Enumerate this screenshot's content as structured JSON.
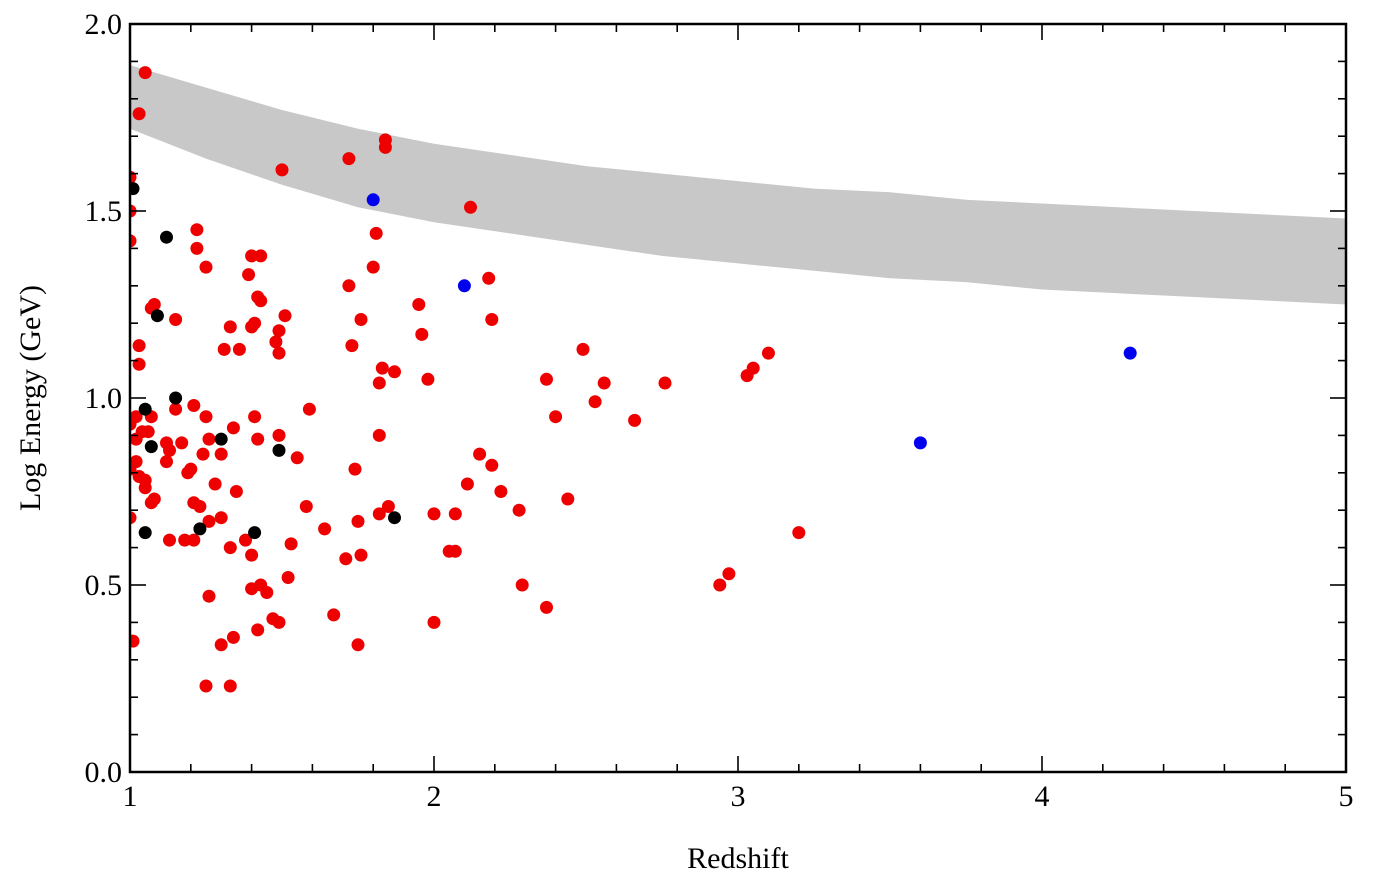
{
  "chart_data": {
    "type": "scatter",
    "title": "",
    "xlabel": "Redshift",
    "ylabel": "Log Energy (GeV)",
    "xlim": [
      1,
      5
    ],
    "ylim": [
      0,
      2
    ],
    "x_ticks": [
      "1",
      "2",
      "3",
      "4",
      "5"
    ],
    "y_ticks": [
      "0.0",
      "0.5",
      "1.0",
      "1.5",
      "2.0"
    ],
    "grid": false,
    "legend": "none",
    "band": {
      "color": "#c8c8c8",
      "x": [
        1.0,
        1.25,
        1.5,
        1.75,
        2.0,
        2.25,
        2.5,
        2.75,
        3.0,
        3.25,
        3.5,
        3.75,
        4.0,
        4.25,
        4.5,
        4.75,
        5.0
      ],
      "upper": [
        1.89,
        1.83,
        1.77,
        1.72,
        1.68,
        1.65,
        1.62,
        1.6,
        1.58,
        1.56,
        1.55,
        1.53,
        1.52,
        1.51,
        1.5,
        1.49,
        1.48
      ],
      "lower": [
        1.72,
        1.64,
        1.57,
        1.51,
        1.47,
        1.44,
        1.41,
        1.38,
        1.36,
        1.34,
        1.32,
        1.31,
        1.29,
        1.28,
        1.27,
        1.26,
        1.25
      ]
    },
    "series": [
      {
        "color": "#ee0000",
        "points": [
          [
            1.05,
            1.87
          ],
          [
            1.03,
            1.76
          ],
          [
            1.0,
            1.59
          ],
          [
            1.0,
            1.5
          ],
          [
            1.0,
            1.42
          ],
          [
            1.08,
            1.25
          ],
          [
            1.07,
            1.24
          ],
          [
            1.15,
            1.21
          ],
          [
            1.03,
            1.14
          ],
          [
            1.03,
            1.09
          ],
          [
            1.0,
            0.93
          ],
          [
            1.02,
            0.95
          ],
          [
            1.07,
            0.95
          ],
          [
            1.06,
            0.91
          ],
          [
            1.04,
            0.91
          ],
          [
            1.02,
            0.89
          ],
          [
            1.02,
            0.83
          ],
          [
            1.0,
            0.81
          ],
          [
            1.03,
            0.79
          ],
          [
            1.05,
            0.78
          ],
          [
            1.05,
            0.76
          ],
          [
            1.08,
            0.73
          ],
          [
            1.07,
            0.72
          ],
          [
            1.0,
            0.68
          ],
          [
            1.01,
            0.35
          ],
          [
            1.15,
            0.97
          ],
          [
            1.12,
            0.88
          ],
          [
            1.17,
            0.88
          ],
          [
            1.13,
            0.86
          ],
          [
            1.12,
            0.83
          ],
          [
            1.19,
            0.8
          ],
          [
            1.2,
            0.81
          ],
          [
            1.13,
            0.62
          ],
          [
            1.18,
            0.62
          ],
          [
            1.21,
            0.72
          ],
          [
            1.22,
            1.45
          ],
          [
            1.22,
            1.4
          ],
          [
            1.25,
            1.35
          ],
          [
            1.21,
            0.98
          ],
          [
            1.25,
            0.95
          ],
          [
            1.26,
            0.89
          ],
          [
            1.24,
            0.85
          ],
          [
            1.28,
            0.77
          ],
          [
            1.23,
            0.71
          ],
          [
            1.26,
            0.67
          ],
          [
            1.3,
            0.68
          ],
          [
            1.21,
            0.62
          ],
          [
            1.26,
            0.47
          ],
          [
            1.25,
            0.23
          ],
          [
            1.33,
            0.23
          ],
          [
            1.3,
            0.85
          ],
          [
            1.34,
            0.92
          ],
          [
            1.31,
            1.13
          ],
          [
            1.33,
            1.19
          ],
          [
            1.36,
            1.13
          ],
          [
            1.39,
            1.33
          ],
          [
            1.4,
            1.38
          ],
          [
            1.43,
            1.38
          ],
          [
            1.42,
            1.27
          ],
          [
            1.43,
            1.26
          ],
          [
            1.41,
            1.2
          ],
          [
            1.4,
            1.19
          ],
          [
            1.41,
            0.95
          ],
          [
            1.42,
            0.89
          ],
          [
            1.35,
            0.75
          ],
          [
            1.38,
            0.62
          ],
          [
            1.33,
            0.6
          ],
          [
            1.4,
            0.58
          ],
          [
            1.4,
            0.49
          ],
          [
            1.43,
            0.5
          ],
          [
            1.45,
            0.48
          ],
          [
            1.42,
            0.38
          ],
          [
            1.34,
            0.36
          ],
          [
            1.3,
            0.34
          ],
          [
            1.47,
            0.41
          ],
          [
            1.49,
            0.4
          ],
          [
            1.51,
            1.22
          ],
          [
            1.49,
            1.18
          ],
          [
            1.48,
            1.15
          ],
          [
            1.49,
            1.12
          ],
          [
            1.49,
            0.9
          ],
          [
            1.55,
            0.84
          ],
          [
            1.58,
            0.71
          ],
          [
            1.59,
            0.97
          ],
          [
            1.53,
            0.61
          ],
          [
            1.52,
            0.52
          ],
          [
            1.5,
            1.61
          ],
          [
            1.64,
            0.65
          ],
          [
            1.67,
            0.42
          ],
          [
            1.71,
            0.57
          ],
          [
            1.74,
            0.81
          ],
          [
            1.75,
            0.67
          ],
          [
            1.76,
            0.58
          ],
          [
            1.75,
            0.34
          ],
          [
            1.72,
            1.64
          ],
          [
            1.72,
            1.3
          ],
          [
            1.76,
            1.21
          ],
          [
            1.73,
            1.14
          ],
          [
            1.8,
            1.35
          ],
          [
            1.81,
            1.44
          ],
          [
            1.82,
            1.04
          ],
          [
            1.83,
            1.08
          ],
          [
            1.82,
            0.9
          ],
          [
            1.82,
            0.69
          ],
          [
            1.85,
            0.71
          ],
          [
            1.84,
            1.67
          ],
          [
            1.84,
            1.69
          ],
          [
            1.87,
            1.07
          ],
          [
            1.95,
            1.25
          ],
          [
            1.96,
            1.17
          ],
          [
            1.98,
            1.05
          ],
          [
            2.0,
            0.69
          ],
          [
            2.0,
            0.4
          ],
          [
            2.05,
            0.59
          ],
          [
            2.07,
            0.59
          ],
          [
            2.07,
            0.69
          ],
          [
            2.11,
            0.77
          ],
          [
            2.12,
            1.51
          ],
          [
            2.15,
            0.85
          ],
          [
            2.18,
            1.32
          ],
          [
            2.19,
            1.21
          ],
          [
            2.19,
            0.82
          ],
          [
            2.22,
            0.75
          ],
          [
            2.28,
            0.7
          ],
          [
            2.29,
            0.5
          ],
          [
            2.37,
            1.05
          ],
          [
            2.37,
            0.44
          ],
          [
            2.4,
            0.95
          ],
          [
            2.44,
            0.73
          ],
          [
            2.49,
            1.13
          ],
          [
            2.53,
            0.99
          ],
          [
            2.56,
            1.04
          ],
          [
            2.66,
            0.94
          ],
          [
            2.76,
            1.04
          ],
          [
            2.94,
            0.5
          ],
          [
            2.97,
            0.53
          ],
          [
            3.03,
            1.06
          ],
          [
            3.05,
            1.08
          ],
          [
            3.1,
            1.12
          ],
          [
            3.2,
            0.64
          ]
        ]
      },
      {
        "color": "#000000",
        "points": [
          [
            1.01,
            1.56
          ],
          [
            1.12,
            1.43
          ],
          [
            1.09,
            1.22
          ],
          [
            1.15,
            1.0
          ],
          [
            1.05,
            0.97
          ],
          [
            1.07,
            0.87
          ],
          [
            1.3,
            0.89
          ],
          [
            1.49,
            0.86
          ],
          [
            1.05,
            0.64
          ],
          [
            1.23,
            0.65
          ],
          [
            1.41,
            0.64
          ],
          [
            1.87,
            0.68
          ]
        ]
      },
      {
        "color": "#0000ee",
        "points": [
          [
            1.8,
            1.53
          ],
          [
            2.1,
            1.3
          ],
          [
            4.29,
            1.12
          ],
          [
            3.6,
            0.88
          ]
        ]
      }
    ]
  }
}
